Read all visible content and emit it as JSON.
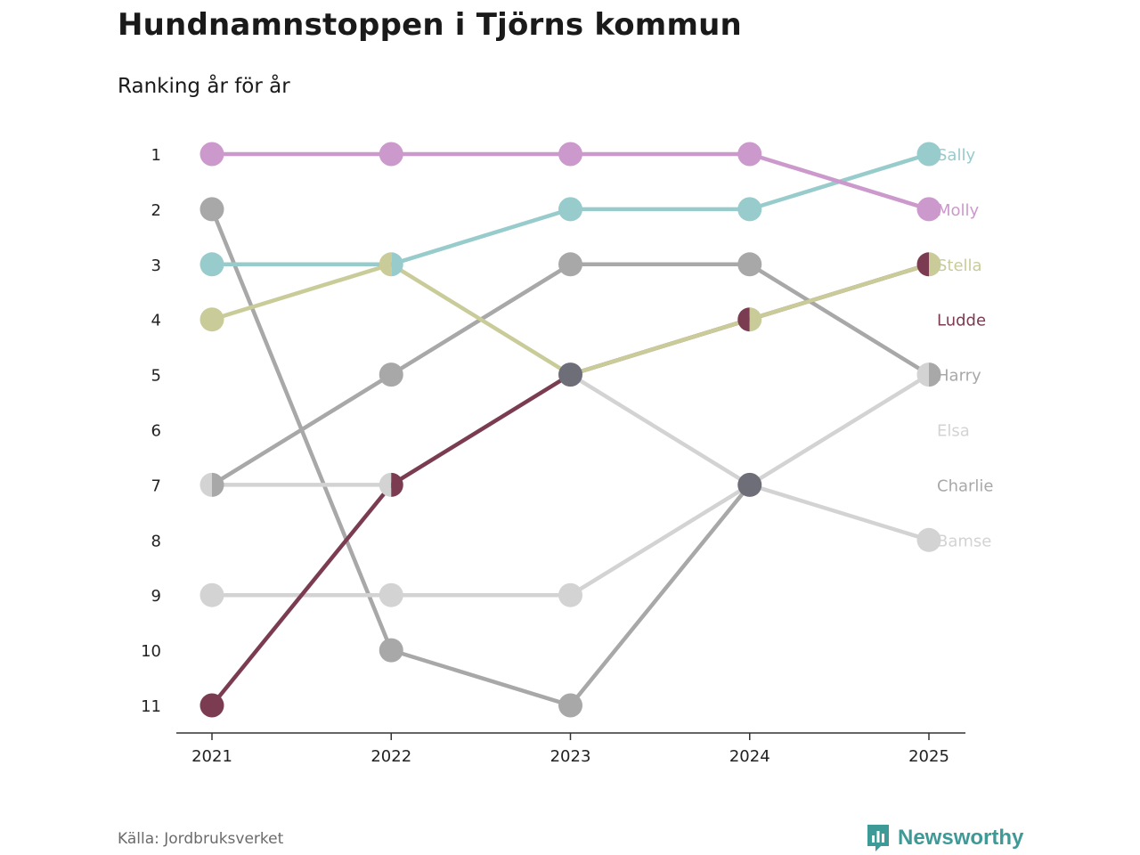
{
  "title": "Hundnamnstoppen i Tjörns kommun",
  "subtitle": "Ranking år för år",
  "source": "Källa: Jordbruksverket",
  "brand": {
    "name": "Newsworthy",
    "icon": "newsworthy-logo-icon",
    "color": "#3e9a96"
  },
  "chart_data": {
    "type": "line",
    "chart_kind": "bump",
    "title": "Hundnamnstoppen i Tjörns kommun",
    "subtitle": "Ranking år för år",
    "xlabel": "",
    "ylabel": "",
    "x": [
      "2021",
      "2022",
      "2023",
      "2024",
      "2025"
    ],
    "y_ticks": [
      "1",
      "2",
      "3",
      "4",
      "5",
      "6",
      "7",
      "8",
      "9",
      "10",
      "11"
    ],
    "ylim": [
      1,
      11
    ],
    "y_inverted": true,
    "grid": false,
    "series": [
      {
        "name": "Charlie",
        "color": "#a8a8a8",
        "values": [
          2,
          10,
          11,
          7,
          null
        ]
      },
      {
        "name": "Elsa",
        "color": "#d3d3d3",
        "values": [
          9,
          9,
          9,
          7,
          5
        ]
      },
      {
        "name": "Bamse",
        "color": "#d3d3d3",
        "values": [
          7,
          7,
          5,
          7,
          8
        ]
      },
      {
        "name": "Harry",
        "color": "#a8a8a8",
        "values": [
          7,
          5,
          3,
          3,
          5
        ]
      },
      {
        "name": "Ludde",
        "color": "#7b3c52",
        "values": [
          11,
          7,
          5,
          4,
          3
        ]
      },
      {
        "name": "Stella",
        "color": "#c9cc99",
        "values": [
          4,
          3,
          5,
          4,
          3
        ]
      },
      {
        "name": "Sally",
        "color": "#98cbcb",
        "values": [
          3,
          3,
          2,
          2,
          1
        ]
      },
      {
        "name": "Molly",
        "color": "#cc99cc",
        "values": [
          1,
          1,
          1,
          1,
          2
        ]
      }
    ],
    "end_labels": [
      {
        "name": "Sally",
        "rank": 1
      },
      {
        "name": "Molly",
        "rank": 2
      },
      {
        "name": "Stella",
        "rank": 3
      },
      {
        "name": "Ludde",
        "rank": 4
      },
      {
        "name": "Harry",
        "rank": 5
      },
      {
        "name": "Elsa",
        "rank": 6
      },
      {
        "name": "Charlie",
        "rank": 7
      },
      {
        "name": "Bamse",
        "rank": 8
      }
    ],
    "tie_color": "#6e6e78"
  }
}
